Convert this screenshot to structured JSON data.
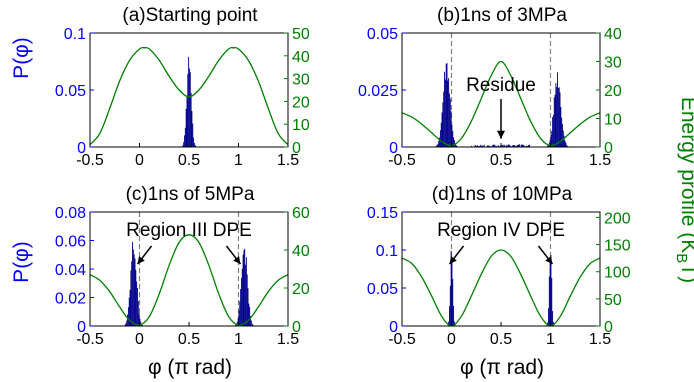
{
  "figure": {
    "y_left_label": "P(φ)",
    "y_right_label_main": "Energy profile (K",
    "y_right_label_sub": "B",
    "y_right_label_end": "T)",
    "x_label": "φ (π rad)"
  },
  "colors": {
    "histogram": "#00008b",
    "energy": "#008000",
    "left_axis": "#0000ff",
    "right_axis": "#008000",
    "dashed": "#808080"
  },
  "chart_data": [
    {
      "type": "bar+line",
      "title": "(a)Starting point",
      "xlim": [
        -0.5,
        1.5
      ],
      "x_ticks": [
        "-0.5",
        "0",
        "0.5",
        "1",
        "1.5"
      ],
      "ylim_left": [
        0,
        0.1
      ],
      "y_left_ticks": [
        "0",
        "0.05",
        "0.1"
      ],
      "ylim_right": [
        0,
        50
      ],
      "y_right_ticks": [
        "0",
        "10",
        "20",
        "30",
        "40",
        "50"
      ],
      "histogram": {
        "peaks": [
          {
            "center": 0.5,
            "height": 0.082,
            "width": 0.022
          }
        ]
      },
      "energy_curve": {
        "x": [
          -0.5,
          -0.4,
          -0.3,
          -0.2,
          -0.1,
          0,
          0.05,
          0.1,
          0.2,
          0.3,
          0.4,
          0.5,
          0.6,
          0.7,
          0.8,
          0.9,
          0.95,
          1.0,
          1.1,
          1.2,
          1.3,
          1.4,
          1.5
        ],
        "y": [
          1,
          6,
          17,
          29,
          38,
          43,
          43.5,
          43,
          38,
          31,
          25,
          22,
          25,
          31,
          38,
          43,
          43.5,
          43,
          38,
          29,
          17,
          6,
          1
        ]
      },
      "dashed_lines": [],
      "annotations": []
    },
    {
      "type": "bar+line",
      "title": "(b)1ns of 3MPa",
      "xlim": [
        -0.5,
        1.5
      ],
      "x_ticks": [
        "-0.5",
        "0",
        "0.5",
        "1",
        "1.5"
      ],
      "ylim_left": [
        0,
        0.05
      ],
      "y_left_ticks": [
        "0",
        "0.025",
        "0.05"
      ],
      "ylim_right": [
        0,
        40
      ],
      "y_right_ticks": [
        "0",
        "10",
        "20",
        "30",
        "40"
      ],
      "histogram": {
        "peaks": [
          {
            "center": -0.05,
            "height": 0.036,
            "width": 0.035
          },
          {
            "center": 1.07,
            "height": 0.031,
            "width": 0.035
          }
        ],
        "residue": {
          "from": 0.2,
          "to": 0.8,
          "height": 0.0012
        }
      },
      "energy_curve": {
        "x": [
          -0.5,
          -0.4,
          -0.3,
          -0.2,
          -0.1,
          0,
          0.1,
          0.2,
          0.3,
          0.4,
          0.5,
          0.6,
          0.7,
          0.8,
          0.9,
          1.0,
          1.1,
          1.2,
          1.3,
          1.4,
          1.5
        ],
        "y": [
          12,
          10.5,
          8,
          5,
          2,
          0.5,
          3,
          9,
          17,
          25,
          30,
          25,
          17,
          9,
          3,
          0.5,
          2,
          5,
          8,
          10.5,
          12
        ]
      },
      "dashed_lines": [
        0,
        1
      ],
      "annotations": [
        {
          "text": "Residue",
          "arrow_to": [
            0.5,
            0.001
          ]
        }
      ]
    },
    {
      "type": "bar+line",
      "title": "(c)1ns of 5MPa",
      "xlim": [
        -0.5,
        1.5
      ],
      "x_ticks": [
        "-0.5",
        "0",
        "0.5",
        "1",
        "1.5"
      ],
      "ylim_left": [
        0,
        0.08
      ],
      "y_left_ticks": [
        "0",
        "0.02",
        "0.04",
        "0.06",
        "0.08"
      ],
      "ylim_right": [
        0,
        60
      ],
      "y_right_ticks": [
        "0",
        "20",
        "40",
        "60"
      ],
      "histogram": {
        "peaks": [
          {
            "center": -0.06,
            "height": 0.056,
            "width": 0.03
          },
          {
            "center": 1.06,
            "height": 0.054,
            "width": 0.03
          }
        ]
      },
      "energy_curve": {
        "x": [
          -0.5,
          -0.4,
          -0.3,
          -0.2,
          -0.1,
          0,
          0.1,
          0.2,
          0.3,
          0.4,
          0.5,
          0.6,
          0.7,
          0.8,
          0.9,
          1.0,
          1.1,
          1.2,
          1.3,
          1.4,
          1.5
        ],
        "y": [
          27,
          24,
          18,
          10,
          3,
          0.5,
          5,
          17,
          32,
          44,
          48,
          44,
          32,
          17,
          5,
          0.5,
          3,
          10,
          18,
          24,
          27
        ]
      },
      "dashed_lines": [
        0,
        1
      ],
      "annotations": [
        {
          "text": "Region III DPE",
          "arrows_to": [
            [
              -0.02,
              0.05
            ],
            [
              1.02,
              0.05
            ]
          ]
        }
      ]
    },
    {
      "type": "bar+line",
      "title": "(d)1ns of 10MPa",
      "xlim": [
        -0.5,
        1.5
      ],
      "x_ticks": [
        "-0.5",
        "0",
        "0.5",
        "1",
        "1.5"
      ],
      "ylim_left": [
        0,
        0.15
      ],
      "y_left_ticks": [
        "0",
        "0.05",
        "0.1",
        "0.15"
      ],
      "ylim_right": [
        0,
        210
      ],
      "y_right_ticks": [
        "0",
        "50",
        "100",
        "150",
        "200"
      ],
      "histogram": {
        "peaks": [
          {
            "center": 0.0,
            "height": 0.105,
            "width": 0.012
          },
          {
            "center": 1.0,
            "height": 0.102,
            "width": 0.012
          }
        ]
      },
      "energy_curve": {
        "x": [
          -0.5,
          -0.4,
          -0.3,
          -0.2,
          -0.1,
          0,
          0.1,
          0.2,
          0.3,
          0.4,
          0.5,
          0.6,
          0.7,
          0.8,
          0.9,
          1.0,
          1.1,
          1.2,
          1.3,
          1.4,
          1.5
        ],
        "y": [
          125,
          115,
          90,
          55,
          18,
          0,
          18,
          55,
          95,
          128,
          140,
          128,
          95,
          55,
          18,
          0,
          18,
          55,
          90,
          115,
          125
        ]
      },
      "dashed_lines": [
        0,
        1
      ],
      "annotations": [
        {
          "text": "Region IV DPE",
          "arrows_to": [
            [
              -0.02,
              0.1
            ],
            [
              1.02,
              0.1
            ]
          ]
        }
      ]
    }
  ]
}
